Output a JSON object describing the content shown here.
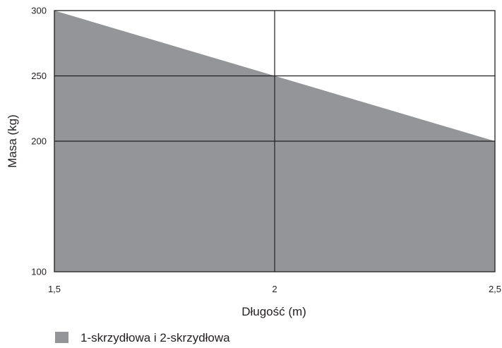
{
  "chart_data": {
    "type": "area",
    "xlabel": "Długość (m)",
    "ylabel": "Masa (kg)",
    "xlim": [
      1.5,
      2.5
    ],
    "ylim": [
      100,
      300
    ],
    "x_ticks": [
      {
        "value": 1.5,
        "label": "1,5"
      },
      {
        "value": 2,
        "label": "2"
      },
      {
        "value": 2.5,
        "label": "2,5"
      }
    ],
    "y_ticks": [
      {
        "value": 100,
        "label": "100"
      },
      {
        "value": 200,
        "label": "200"
      },
      {
        "value": 250,
        "label": "250"
      },
      {
        "value": 300,
        "label": "300"
      }
    ],
    "grid": true,
    "legend_position": "bottom-left",
    "series": [
      {
        "name": "1-skrzydłowa i 2-skrzydłowa",
        "color": "#939598",
        "points": [
          {
            "x": 1.5,
            "y": 300
          },
          {
            "x": 2,
            "y": 250
          },
          {
            "x": 2.5,
            "y": 200
          }
        ]
      }
    ]
  }
}
